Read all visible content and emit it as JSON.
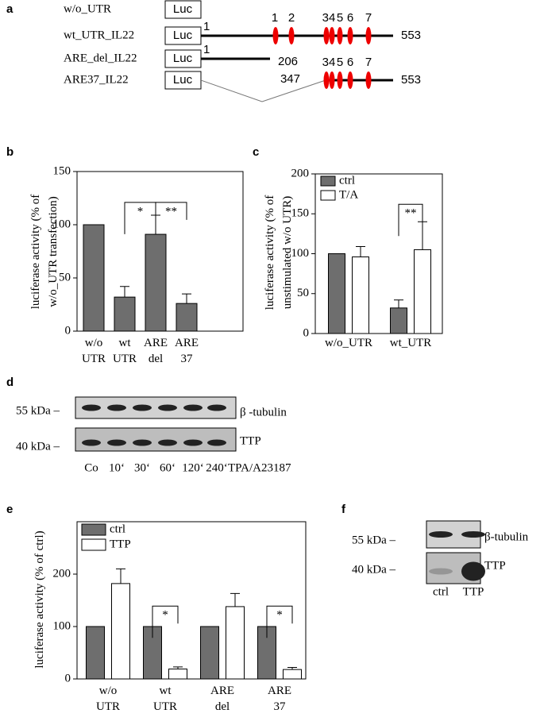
{
  "panel_labels": [
    "a",
    "b",
    "c",
    "d",
    "e",
    "f"
  ],
  "diagram": {
    "constructs": [
      {
        "label": "w/o_UTR",
        "box": "Luc"
      },
      {
        "label": "wt_UTR_IL22",
        "box": "Luc",
        "start": "1",
        "end": "553",
        "sites": [
          "1",
          "2",
          "34",
          "5",
          "6",
          "7"
        ]
      },
      {
        "label": "ARE_del_IL22",
        "box": "Luc",
        "start": "1",
        "end": "206"
      },
      {
        "label": "ARE37_IL22",
        "box": "Luc",
        "start": "347",
        "end": "553",
        "sites": [
          "34",
          "5",
          "6",
          "7"
        ]
      }
    ]
  },
  "chart_data": [
    {
      "type": "bar",
      "ylabel": "luciferase activity (% of\nw/o_UTR transfection)",
      "categories": [
        "w/o\nUTR",
        "wt\nUTR",
        "ARE\ndel",
        "ARE\n37"
      ],
      "values": [
        100,
        32,
        91,
        26
      ],
      "errors": [
        null,
        10,
        18,
        9
      ],
      "color": "#6e6e6e",
      "ylim": [
        0,
        150
      ],
      "yticks": [
        0,
        50,
        100,
        150
      ],
      "annotations": [
        "*",
        "**"
      ]
    },
    {
      "type": "bar",
      "ylabel": "luciferase activity (% of\nunstimulated w/o UTR)",
      "categories": [
        "w/o_UTR",
        "wt_UTR"
      ],
      "series": [
        {
          "name": "ctrl",
          "color": "#6e6e6e",
          "values": [
            100,
            32
          ],
          "errors": [
            null,
            10
          ]
        },
        {
          "name": "T/A",
          "color": "#ffffff",
          "values": [
            96,
            105
          ],
          "errors": [
            13,
            35
          ]
        }
      ],
      "legend": "upper left",
      "ylim": [
        0,
        200
      ],
      "yticks": [
        0,
        50,
        100,
        150,
        200
      ],
      "annotations": [
        "**"
      ]
    },
    {
      "type": "bar",
      "ylabel": "luciferase activity (% of ctrl)",
      "categories": [
        "w/o\nUTR",
        "wt\nUTR",
        "ARE\ndel",
        "ARE\n37"
      ],
      "series": [
        {
          "name": "ctrl",
          "color": "#6e6e6e",
          "values": [
            100,
            100,
            100,
            100
          ],
          "errors": [
            null,
            null,
            null,
            null
          ]
        },
        {
          "name": "TTP",
          "color": "#ffffff",
          "values": [
            182,
            19,
            138,
            18
          ],
          "errors": [
            28,
            4,
            25,
            4
          ]
        }
      ],
      "legend": "upper left",
      "ylim": [
        0,
        300
      ],
      "yticks": [
        0,
        100,
        200
      ],
      "annotations": [
        "*",
        "*"
      ]
    }
  ],
  "blot_d": {
    "markers": [
      "55 kDa –",
      "40 kDa –"
    ],
    "proteins": [
      "β -tubulin",
      "TTP"
    ],
    "lanes": [
      "Co",
      "10‘",
      "30‘",
      "60‘",
      "120‘",
      "240‘"
    ],
    "treatment": "TPA/A23187"
  },
  "blot_f": {
    "markers": [
      "55 kDa –",
      "40 kDa –"
    ],
    "proteins": [
      "β-tubulin",
      "TTP"
    ],
    "lanes": [
      "ctrl",
      "TTP"
    ]
  }
}
